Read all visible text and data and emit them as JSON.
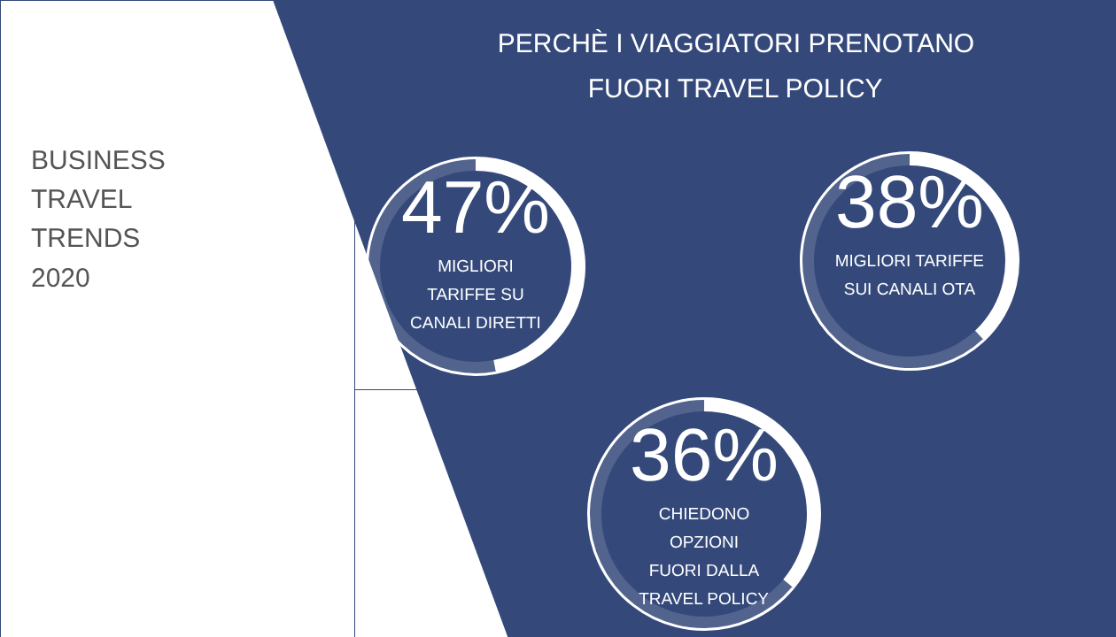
{
  "chart_data": [
    {
      "type": "other",
      "title": "PERCHÈ I VIAGGIATORI PRENOTANO\nFUORI TRAVEL POLICY",
      "annotations": [
        "BUSINESS\nTRAVEL\nTRENDS\n2020"
      ]
    },
    {
      "type": "donut",
      "categories": [
        "MIGLIORI\nTARIFFE SU\nCANALI DIRETTI",
        null
      ],
      "values": [
        47,
        53
      ],
      "colors": [
        "#ffffff",
        "#ffffff"
      ],
      "value_labels": [
        "47%",
        null
      ]
    },
    {
      "type": "donut",
      "categories": [
        "MIGLIORI TARIFFE\nSUI CANALI OTA",
        null
      ],
      "values": [
        38,
        62
      ],
      "colors": [
        "#ffffff",
        "#ffffff"
      ],
      "value_labels": [
        "38%",
        null
      ]
    },
    {
      "type": "donut",
      "categories": [
        "CHIEDONO\nOPZIONI\nFUORI DALLA\nTRAVEL POLICY",
        null
      ],
      "values": [
        36,
        64
      ],
      "colors": [
        "#ffffff",
        "#ffffff"
      ],
      "value_labels": [
        "36%",
        null
      ]
    }
  ]
}
